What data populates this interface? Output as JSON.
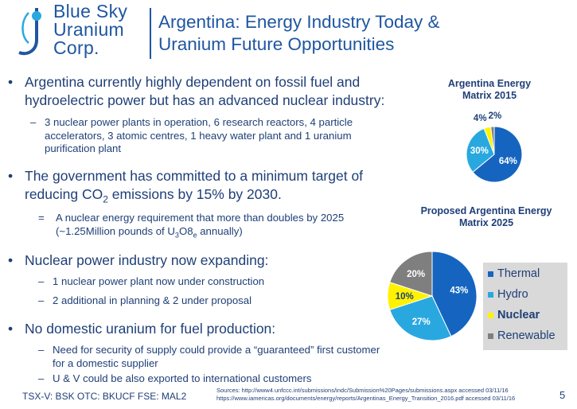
{
  "logo": {
    "line1": "Blue Sky",
    "line2": "Uranium",
    "line3": "Corp."
  },
  "title": {
    "line1": "Argentina: Energy Industry Today &",
    "line2": "Uranium Future Opportunities"
  },
  "bullets": {
    "b1_line1": "Argentina currently highly dependent on fossil fuel and",
    "b1_line2": "hydroelectric power but has an advanced nuclear industry:",
    "b1_sub_line1": "3 nuclear power plants in operation, 6 research reactors, 4 particle",
    "b1_sub_line2": "accelerators, 3 atomic centres, 1 heavy water plant and 1 uranium",
    "b1_sub_line3": "purification plant",
    "b2_line1": "The government has committed to a minimum target of",
    "b2_line2_pre": "reducing CO",
    "b2_line2_sub": "2",
    "b2_line2_post": " emissions by 15% by 2030.",
    "b2_sub_marker": "=",
    "b2_sub_line1": "A nuclear energy requirement that more than doubles by 2025",
    "b2_sub_line2_pre": "(~1.25Million pounds of U",
    "b2_sub_line2_sub1": "3",
    "b2_sub_line2_mid": "O8",
    "b2_sub_line2_sub2": "e",
    "b2_sub_line2_post": "  annually)",
    "b3": "Nuclear power industry now expanding:",
    "b3_sub1": "1 nuclear power plant now under construction",
    "b3_sub2": "2 additional in planning &  2 under proposal",
    "b4": "No domestic uranium for fuel production:",
    "b4_sub1_line1": "Need for security of supply could provide a “guaranteed” first customer",
    "b4_sub1_line2": "for a domestic supplier",
    "b4_sub2": "U & V could be also exported to international customers",
    "dot": "•",
    "dash": "–"
  },
  "chart_data": [
    {
      "type": "pie",
      "title_line1": "Argentina Energy",
      "title_line2": "Matrix 2015",
      "categories": [
        "Thermal",
        "Hydro",
        "Nuclear",
        "Renewable"
      ],
      "values": [
        64,
        30,
        4,
        2
      ],
      "labels": [
        "64%",
        "30%",
        "4%",
        "2%"
      ]
    },
    {
      "type": "pie",
      "title_line1": "Proposed Argentina Energy",
      "title_line2": "Matrix 2025",
      "categories": [
        "Thermal",
        "Hydro",
        "Nuclear",
        "Renewable"
      ],
      "values": [
        43,
        27,
        10,
        20
      ],
      "labels": [
        "43%",
        "27%",
        "10%",
        "20%"
      ]
    }
  ],
  "legend": [
    {
      "label": "Thermal",
      "color": "#1565c0"
    },
    {
      "label": "Hydro",
      "color": "#29a8e0"
    },
    {
      "label": "Nuclear",
      "color": "#fff200"
    },
    {
      "label": "Renewable",
      "color": "#7f7f7f"
    }
  ],
  "colors": {
    "thermal": "#1565c0",
    "hydro": "#29a8e0",
    "nuclear": "#fff200",
    "renewable": "#7f7f7f",
    "brand": "#1f56a0"
  },
  "footer": {
    "tickers": "TSX-V: BSK  OTC: BKUCF  FSE: MAL2",
    "source1": "Sources: http://www4.unfccc.int/submissions/indc/Submission%20Pages/submissions.aspx accessed 03/11/16",
    "source2": "https://www.iamericas.org/documents/energy/reports/Argentinas_Energy_Transition_2016.pdf accessed 03/11/16",
    "page_number": "5"
  }
}
